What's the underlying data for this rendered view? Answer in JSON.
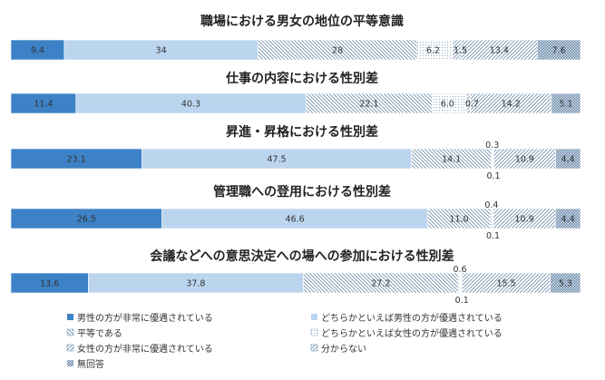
{
  "chart_data": [
    {
      "type": "bar",
      "orientation": "horizontal",
      "stacked": true,
      "percent": true,
      "title": "職場における男女の地位の平等意識",
      "values": [
        9.4,
        34,
        28,
        6.2,
        1.5,
        13.4,
        7.6
      ],
      "labels": [
        "9.4",
        "34",
        "28",
        "6.2",
        "1.5",
        "13.4",
        "7.6"
      ]
    },
    {
      "type": "bar",
      "orientation": "horizontal",
      "stacked": true,
      "percent": true,
      "title": "仕事の内容における性別差",
      "values": [
        11.4,
        40.3,
        22.1,
        6.0,
        0.7,
        14.2,
        5.1
      ],
      "labels": [
        "11.4",
        "40.3",
        "22.1",
        "6.0",
        "0.7",
        "14.2",
        "5.1"
      ]
    },
    {
      "type": "bar",
      "orientation": "horizontal",
      "stacked": true,
      "percent": true,
      "title": "昇進・昇格における性別差",
      "values": [
        23.1,
        47.5,
        14.1,
        0.3,
        0.1,
        10.9,
        4.4
      ],
      "labels": [
        "23.1",
        "47.5",
        "14.1",
        "0.3",
        "0.1",
        "10.9",
        "4.4"
      ]
    },
    {
      "type": "bar",
      "orientation": "horizontal",
      "stacked": true,
      "percent": true,
      "title": "管理職への登用における性別差",
      "values": [
        26.5,
        46.6,
        11.0,
        0.4,
        0.1,
        10.9,
        4.4
      ],
      "labels": [
        "26.5",
        "46.6",
        "11.0",
        "0.4",
        "0.1",
        "10.9",
        "4.4"
      ]
    },
    {
      "type": "bar",
      "orientation": "horizontal",
      "stacked": true,
      "percent": true,
      "title": "会議などへの意思決定への場への参加における性別差",
      "values": [
        13.6,
        37.8,
        27.2,
        0.6,
        0.1,
        15.5,
        5.3
      ],
      "labels": [
        "13.6",
        "37.8",
        "27.2",
        "0.6",
        "0.1",
        "15.5",
        "5.3"
      ]
    }
  ],
  "legend": [
    {
      "label": "男性の方が非常に優遇されている",
      "color": "#3d82c6",
      "pattern": "solid"
    },
    {
      "label": "どちらかといえば男性の方が優遇されている",
      "color": "#bcd5ef",
      "pattern": "solid"
    },
    {
      "label": "平等である",
      "color": "#6f8dab",
      "pattern": "diag-down"
    },
    {
      "label": "どちらかといえば女性の方が優遇されている",
      "color": "#8fa9c4",
      "pattern": "dots"
    },
    {
      "label": "女性の方が非常に優遇されている",
      "color": "#6f8dab",
      "pattern": "diag-up"
    },
    {
      "label": "分からない",
      "color": "#6f8dab",
      "pattern": "diag-up"
    },
    {
      "label": "無回答",
      "color": "#5f7fa0",
      "pattern": "checker"
    }
  ]
}
